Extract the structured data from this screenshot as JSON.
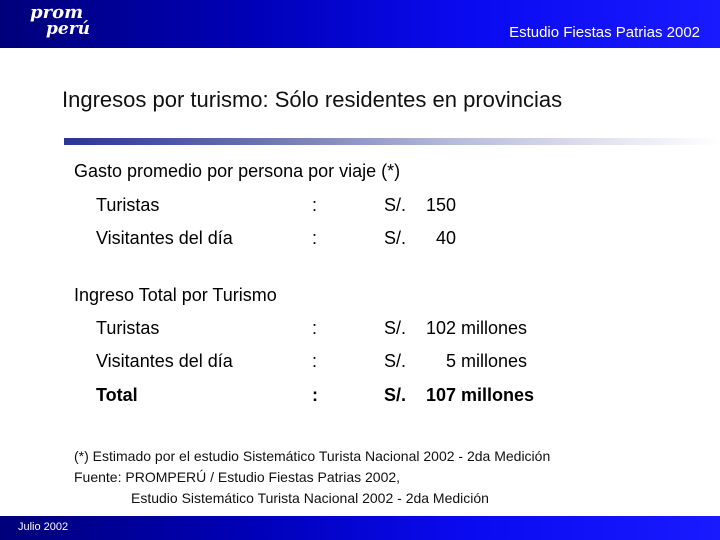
{
  "header": {
    "logo_line1": "prom",
    "logo_line2": "perú",
    "title": "Estudio Fiestas Patrias 2002",
    "background_color": "#0000b8"
  },
  "slide": {
    "title": "Ingresos por turismo: Sólo residentes en provincias"
  },
  "section_spend": {
    "heading": "Gasto promedio por persona por viaje (*)",
    "rows": [
      {
        "label": "Turistas",
        "colon": ":",
        "currency": "S/.",
        "amount": "150"
      },
      {
        "label": "Visitantes del día",
        "colon": ":",
        "currency": "S/.",
        "amount": "40"
      }
    ]
  },
  "section_total": {
    "heading": "Ingreso Total por Turismo",
    "rows": [
      {
        "label": "Turistas",
        "colon": ":",
        "currency": "S/.",
        "amount": "102 millones"
      },
      {
        "label": "Visitantes del día",
        "colon": ":",
        "currency": "S/.",
        "amount": "5 millones"
      },
      {
        "label": "Total",
        "colon": ":",
        "currency": "S/.",
        "amount": "107 millones"
      }
    ]
  },
  "notes": {
    "line1": "(*) Estimado por el estudio Sistemático Turista Nacional 2002 - 2da Medición",
    "line2": "Fuente: PROMPERÚ / Estudio Fiestas Patrias 2002,",
    "line3": "Estudio Sistemático Turista Nacional 2002 - 2da Medición"
  },
  "footer": {
    "date": "Julio 2002"
  }
}
